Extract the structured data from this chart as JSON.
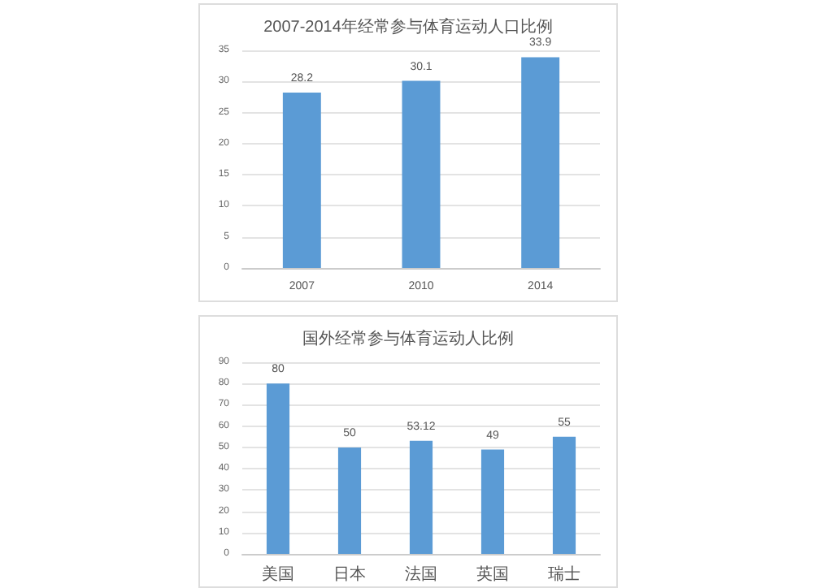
{
  "chart_data": [
    {
      "type": "bar",
      "title": "2007-2014年经常参与体育运动人口比例",
      "categories": [
        "2007",
        "2010",
        "2014"
      ],
      "values": [
        28.2,
        30.1,
        33.9
      ],
      "color": "#5b9bd5",
      "ylim": [
        0,
        35
      ],
      "yticks": [
        0,
        5,
        10,
        15,
        20,
        25,
        30,
        35
      ],
      "grid": "y",
      "data_labels": true
    },
    {
      "type": "bar",
      "title": "国外经常参与体育运动人比例",
      "categories": [
        "美国",
        "日本",
        "法国",
        "英国",
        "瑞士"
      ],
      "values": [
        80,
        50,
        53.12,
        49,
        55
      ],
      "color": "#5b9bd5",
      "ylim": [
        0,
        90
      ],
      "yticks": [
        0,
        10,
        20,
        30,
        40,
        50,
        60,
        70,
        80,
        90
      ],
      "grid": "y",
      "data_labels": true
    }
  ]
}
